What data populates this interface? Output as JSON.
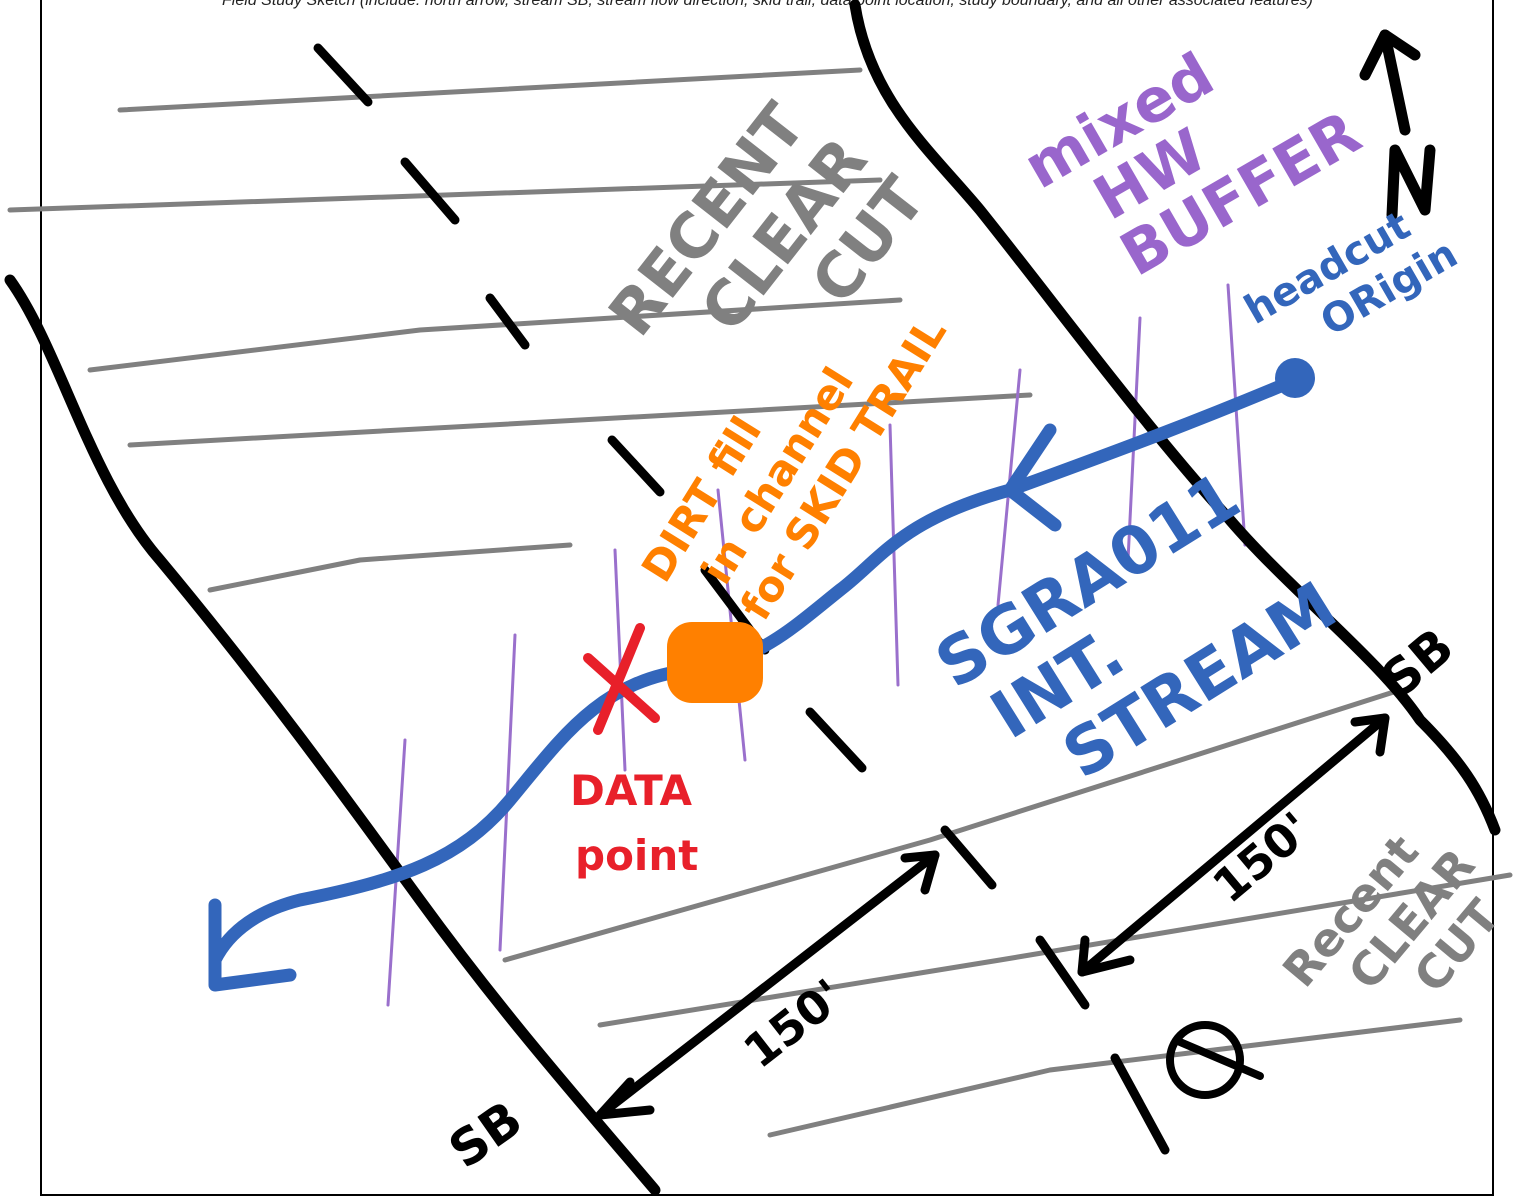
{
  "header": {
    "text": "Field Study Sketch (include: north arrow, stream SB, stream flow direction, skid trail, data point location, study boundary, and all other associated features)"
  },
  "labels": {
    "clearcut_top": [
      "RECENT",
      "CLEAR",
      "CUT"
    ],
    "buffer": [
      "mixed",
      "HW",
      "BUFFER"
    ],
    "skid_trail": [
      "DIRT fill",
      "in channel",
      "for SKID TRAIL"
    ],
    "headcut": [
      "headcut",
      "ORigin"
    ],
    "stream": [
      "SGRA011",
      "INT.",
      "STREAM"
    ],
    "data_point": [
      "DATA",
      "point"
    ],
    "clearcut_bottom": [
      "Recent",
      "CLEAR",
      "CUT"
    ],
    "north": "N",
    "sb_top": "SB",
    "sb_bottom": "SB",
    "dist_1": "150'",
    "dist_2": "150'"
  },
  "colors": {
    "ink": "#000000",
    "clearcut": "#808080",
    "buffer": "#9966cc",
    "stream": "#3366bb",
    "skid_trail": "#ff8000",
    "data_point": "#e8202a",
    "vertical_lines": "#9a70cc"
  },
  "icons": [
    "north-arrow-icon",
    "data-point-x-icon",
    "headcut-dot-icon",
    "skid-trail-fill-icon",
    "centerline-icon"
  ]
}
